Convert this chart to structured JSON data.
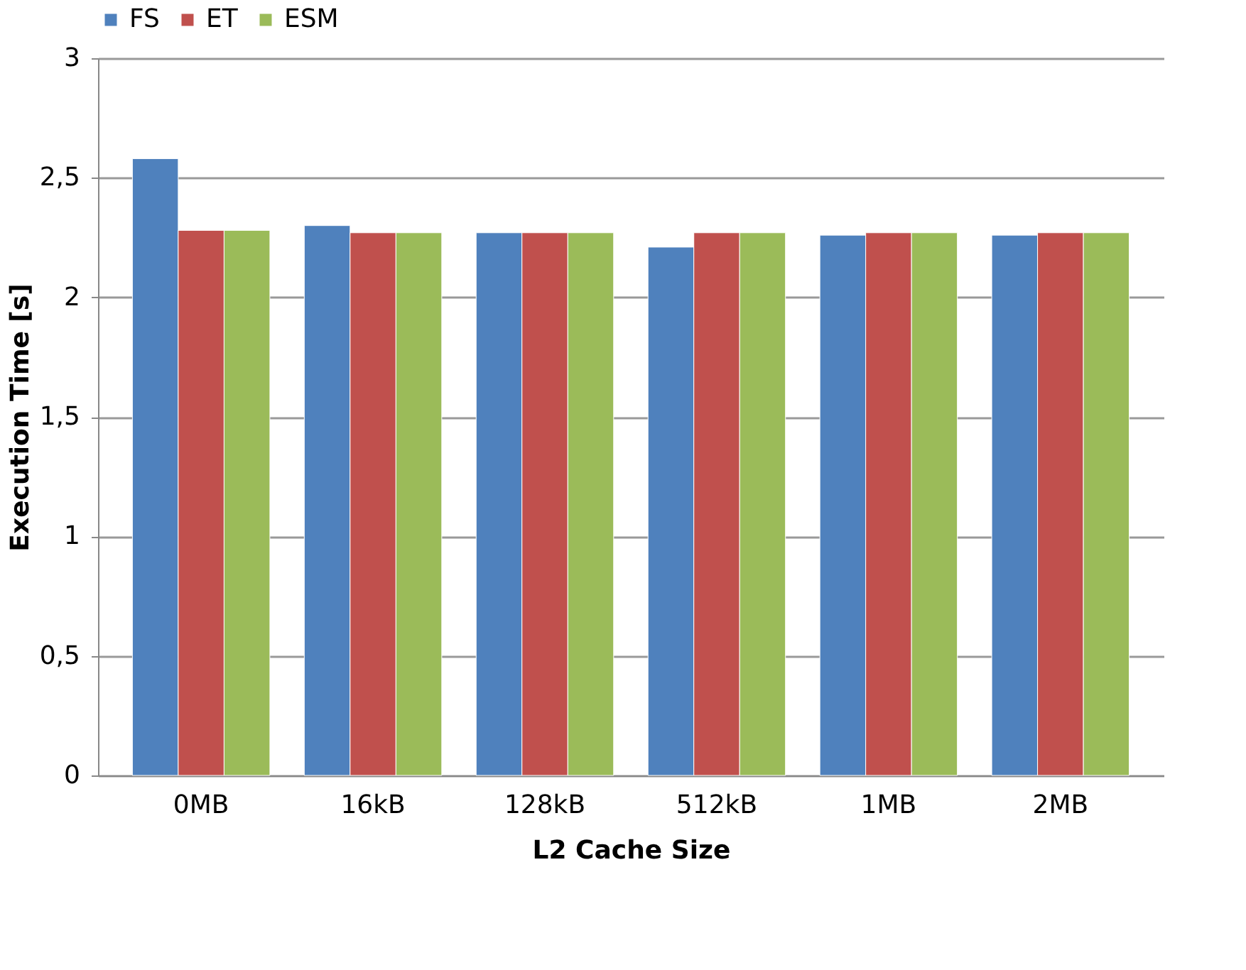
{
  "chart_data": {
    "type": "bar",
    "xlabel": "L2 Cache Size",
    "ylabel": "Execution Time [s]",
    "categories": [
      "0MB",
      "16kB",
      "128kB",
      "512kB",
      "1MB",
      "2MB"
    ],
    "series": [
      {
        "name": "FS",
        "color": "#4f81bd",
        "values": [
          2.58,
          2.3,
          2.27,
          2.21,
          2.26,
          2.26
        ]
      },
      {
        "name": "ET",
        "color": "#c0504d",
        "values": [
          2.28,
          2.27,
          2.27,
          2.27,
          2.27,
          2.27
        ]
      },
      {
        "name": "ESM",
        "color": "#9bbb59",
        "values": [
          2.28,
          2.27,
          2.27,
          2.27,
          2.27,
          2.27
        ]
      }
    ],
    "ylim": [
      0,
      3
    ],
    "yticks": [
      {
        "value": 0,
        "label": "0"
      },
      {
        "value": 0.5,
        "label": "0,5"
      },
      {
        "value": 1,
        "label": "1"
      },
      {
        "value": 1.5,
        "label": "1,5"
      },
      {
        "value": 2,
        "label": "2"
      },
      {
        "value": 2.5,
        "label": "2,5"
      },
      {
        "value": 3,
        "label": "3"
      }
    ],
    "grid": "y",
    "legend": "top"
  }
}
